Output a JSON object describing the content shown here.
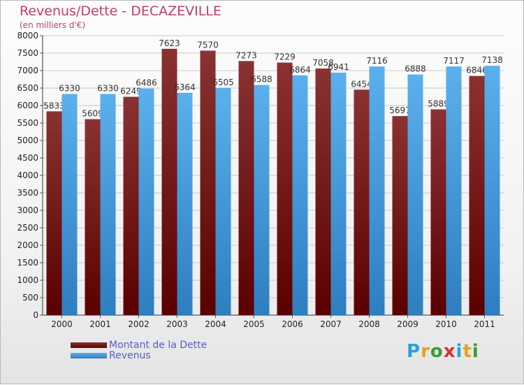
{
  "chart_data": {
    "type": "bar",
    "title": "Revenus/Dette - DECAZEVILLE",
    "subtitle": "(en milliers d'€)",
    "xlabel": "",
    "ylabel": "",
    "categories": [
      "2000",
      "2001",
      "2002",
      "2003",
      "2004",
      "2005",
      "2006",
      "2007",
      "2008",
      "2009",
      "2010",
      "2011"
    ],
    "series": [
      {
        "name": "Montant de la Dette",
        "color": "#7a2020",
        "values": [
          5833,
          5609,
          6249,
          7623,
          7570,
          7273,
          7229,
          7058,
          6454,
          5697,
          5889,
          6846
        ]
      },
      {
        "name": "Revenus",
        "color": "#4a9ee0",
        "values": [
          6330,
          6330,
          6486,
          6364,
          6505,
          6588,
          6864,
          6941,
          7116,
          6888,
          7117,
          7138
        ]
      }
    ],
    "ylim": [
      0,
      8000
    ],
    "yticks": [
      0,
      500,
      1000,
      1500,
      2000,
      2500,
      3000,
      3500,
      4000,
      4500,
      5000,
      5500,
      6000,
      6500,
      7000,
      7500,
      8000
    ],
    "grid": true,
    "legend_position": "bottom-left"
  },
  "branding": {
    "logo_letters": [
      "P",
      "r",
      "o",
      "x",
      "i",
      "t",
      "i"
    ],
    "logo_colors": [
      "#2aa0d8",
      "#e8a020",
      "#3a9a3a",
      "#d83030",
      "#2aa0d8",
      "#e8a020",
      "#3a9a3a"
    ]
  }
}
